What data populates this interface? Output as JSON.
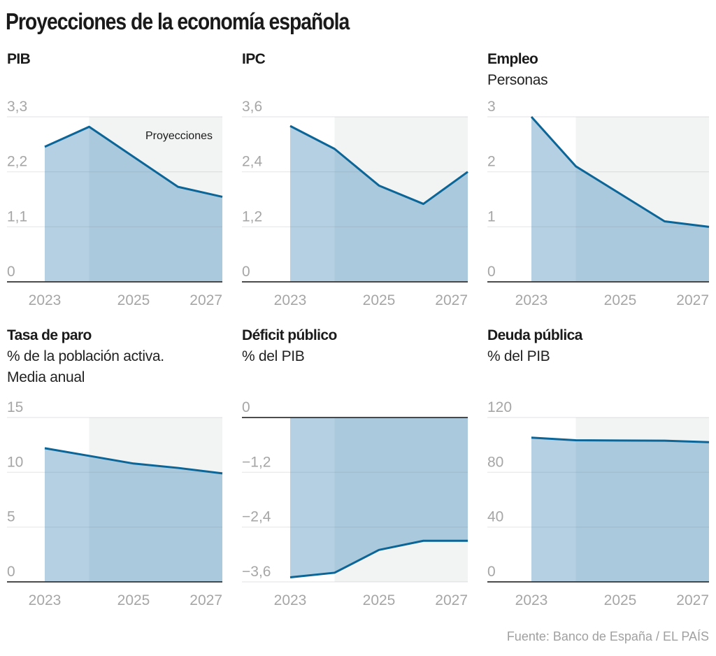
{
  "title": "Proyecciones de la economía española",
  "source": "Fuente: Banco de España / EL PAÍS",
  "colors": {
    "line": "#0b6597",
    "fill": "#b4d0e2",
    "fill_projection": "#abc9dc",
    "projection_bg": "#f2f3f3",
    "grid": "#e3e3e3",
    "axis": "#333333",
    "tick_text": "#a6a6a6"
  },
  "chart_data": [
    {
      "id": "pib",
      "type": "area",
      "title": "PIB",
      "subtitle": [],
      "x": [
        2023,
        2024,
        2025,
        2026,
        2027
      ],
      "x_tick_labels": [
        "2023",
        "2025",
        "2027"
      ],
      "x_tick_values": [
        2023,
        2025,
        2027
      ],
      "values": [
        2.7,
        3.1,
        2.5,
        1.9,
        1.7
      ],
      "ylim": [
        0,
        3.3
      ],
      "y_ticks": [
        0,
        1.1,
        2.2,
        3.3
      ],
      "y_tick_labels": [
        "0",
        "1,1",
        "2,2",
        "3,3"
      ],
      "projection_start": 2024,
      "annotation": "Proyecciones",
      "grid": true
    },
    {
      "id": "ipc",
      "type": "area",
      "title": "IPC",
      "subtitle": [],
      "x": [
        2023,
        2024,
        2025,
        2026,
        2027
      ],
      "x_tick_labels": [
        "2023",
        "2025",
        "2027"
      ],
      "x_tick_values": [
        2023,
        2025,
        2027
      ],
      "values": [
        3.4,
        2.9,
        2.1,
        1.7,
        2.4
      ],
      "ylim": [
        0,
        3.6
      ],
      "y_ticks": [
        0,
        1.2,
        2.4,
        3.6
      ],
      "y_tick_labels": [
        "0",
        "1,2",
        "2,4",
        "3,6"
      ],
      "projection_start": 2024,
      "grid": true
    },
    {
      "id": "empleo",
      "type": "area",
      "title": "Empleo",
      "subtitle": [
        "Personas"
      ],
      "x": [
        2023,
        2024,
        2025,
        2026,
        2027
      ],
      "x_tick_labels": [
        "2023",
        "2025",
        "2027"
      ],
      "x_tick_values": [
        2023,
        2025,
        2027
      ],
      "values": [
        3.0,
        2.1,
        1.6,
        1.1,
        1.0
      ],
      "ylim": [
        0,
        3
      ],
      "y_ticks": [
        0,
        1,
        2,
        3
      ],
      "y_tick_labels": [
        "0",
        "1",
        "2",
        "3"
      ],
      "projection_start": 2024,
      "grid": true
    },
    {
      "id": "paro",
      "type": "area",
      "title": "Tasa de paro",
      "subtitle": [
        "% de la población activa.",
        "Media anual"
      ],
      "x": [
        2023,
        2024,
        2025,
        2026,
        2027
      ],
      "x_tick_labels": [
        "2023",
        "2025",
        "2027"
      ],
      "x_tick_values": [
        2023,
        2025,
        2027
      ],
      "values": [
        12.2,
        11.5,
        10.8,
        10.4,
        9.9
      ],
      "ylim": [
        0,
        15
      ],
      "y_ticks": [
        0,
        5,
        10,
        15
      ],
      "y_tick_labels": [
        "0",
        "5",
        "10",
        "15"
      ],
      "projection_start": 2024,
      "grid": true
    },
    {
      "id": "deficit",
      "type": "area",
      "title": "Déficit público",
      "subtitle": [
        "% del PIB"
      ],
      "x": [
        2023,
        2024,
        2025,
        2026,
        2027
      ],
      "x_tick_labels": [
        "2023",
        "2025",
        "2027"
      ],
      "x_tick_values": [
        2023,
        2025,
        2027
      ],
      "values": [
        -3.5,
        -3.4,
        -2.9,
        -2.7,
        -2.7
      ],
      "ylim": [
        -3.6,
        0
      ],
      "y_ticks": [
        0,
        -1.2,
        -2.4,
        -3.6
      ],
      "y_tick_labels": [
        "0",
        "−1,2",
        "−2,4",
        "−3,6"
      ],
      "projection_start": 2024,
      "grid": true
    },
    {
      "id": "deuda",
      "type": "area",
      "title": "Deuda pública",
      "subtitle": [
        "% del PIB"
      ],
      "x": [
        2023,
        2024,
        2025,
        2026,
        2027
      ],
      "x_tick_labels": [
        "2023",
        "2025",
        "2027"
      ],
      "x_tick_values": [
        2023,
        2025,
        2027
      ],
      "values": [
        105.3,
        103.4,
        103.2,
        103.1,
        102.0
      ],
      "ylim": [
        0,
        120
      ],
      "y_ticks": [
        0,
        40,
        80,
        120
      ],
      "y_tick_labels": [
        "0",
        "40",
        "80",
        "120"
      ],
      "projection_start": 2024,
      "grid": true
    }
  ]
}
